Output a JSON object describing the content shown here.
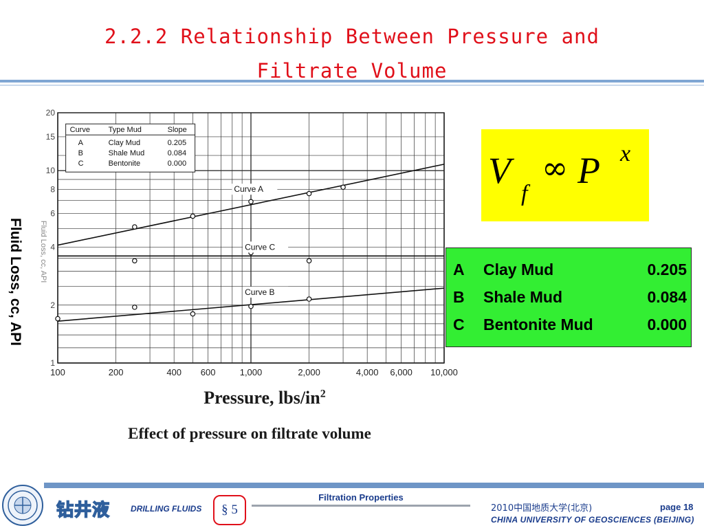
{
  "slide": {
    "title_line1": "2.2.2 Relationship Between Pressure and",
    "title_line2": "Filtrate Volume",
    "y_axis_label": "Fluid Loss, cc, API",
    "x_axis_label": "Pressure, lbs/in",
    "x_axis_unit_superscript": "2",
    "caption": "Effect of pressure on filtrate volume"
  },
  "formula": {
    "lhs": "V",
    "lhs_subscript": "f",
    "relation": "∞",
    "rhs": "P",
    "rhs_superscript": "x"
  },
  "legend": [
    {
      "curve": "A",
      "mud": "Clay Mud",
      "slope": "0.205"
    },
    {
      "curve": "B",
      "mud": "Shale Mud",
      "slope": "0.084"
    },
    {
      "curve": "C",
      "mud": "Bentonite Mud",
      "slope": "0.000"
    }
  ],
  "chart_data": {
    "type": "line",
    "xscale": "log",
    "yscale": "log",
    "xlim": [
      100,
      10000
    ],
    "ylim": [
      1,
      20
    ],
    "x_tick_labels": [
      "100",
      "200",
      "400",
      "600",
      "1,000",
      "2,000",
      "4,000",
      "6,000",
      "10,000"
    ],
    "y_tick_labels": [
      "1",
      "2",
      "4",
      "6",
      "8",
      "10",
      "15",
      "20"
    ],
    "grid": true,
    "y_axis_label_faded": "Fluid Loss, cc, API",
    "inset_table": {
      "headers": [
        "Curve",
        "Type Mud",
        "Slope"
      ],
      "rows": [
        [
          "A",
          "Clay Mud",
          "0.205"
        ],
        [
          "B",
          "Shale Mud",
          "0.084"
        ],
        [
          "C",
          "Bentonite",
          "0.000"
        ]
      ]
    },
    "series": [
      {
        "name": "Curve A",
        "x": [
          100,
          10000
        ],
        "y": [
          4.1,
          10.8
        ],
        "points": [
          [
            250,
            5.1
          ],
          [
            500,
            5.8
          ],
          [
            1000,
            6.9
          ],
          [
            2000,
            7.6
          ],
          [
            3000,
            8.2
          ]
        ]
      },
      {
        "name": "Curve B",
        "x": [
          100,
          10000
        ],
        "y": [
          1.65,
          2.45
        ],
        "points": [
          [
            100,
            1.7
          ],
          [
            250,
            1.95
          ],
          [
            500,
            1.8
          ],
          [
            1000,
            1.97
          ],
          [
            2000,
            2.15
          ]
        ]
      },
      {
        "name": "Curve C",
        "x": [
          100,
          10000
        ],
        "y": [
          3.6,
          3.6
        ],
        "points": [
          [
            250,
            3.4
          ],
          [
            1000,
            3.75
          ],
          [
            2000,
            3.4
          ]
        ]
      }
    ]
  },
  "footer": {
    "brand_cn": "钻井液",
    "course": "DRILLING FLUIDS",
    "section": "§ 5",
    "topic": "Filtration Properties",
    "university_cn": "2010中国地质大学(北京)",
    "page": "page 18",
    "university_en": "CHINA UNIVERSITY OF GEOSCIENCES (BEIJING)"
  },
  "colors": {
    "title": "#e0101a",
    "formula_bg": "#ffff00",
    "legend_bg": "#33ee33",
    "footer_blue": "#1a3c8c",
    "rule_blue": "#7fa6d3"
  }
}
